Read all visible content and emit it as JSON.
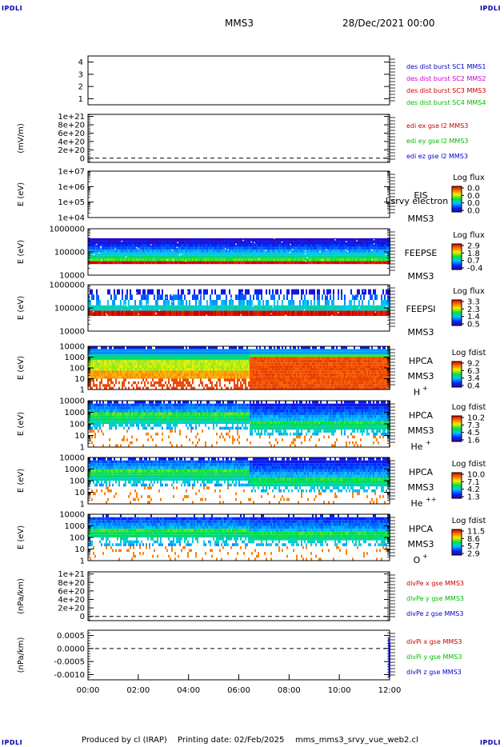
{
  "header": {
    "corner_label": "IPDLI",
    "spacecraft": "MMS3",
    "date": "28/Dec/2021 00:00"
  },
  "footer": {
    "produced_by": "Produced by cl (IRAP)",
    "printing_date": "Printing date: 02/Feb/2025",
    "filename": "mms_mms3_srvy_vue_web2.cl"
  },
  "colors": {
    "mms1": "#0000cc",
    "mms2": "#cc00cc",
    "mms3": "#cc0000",
    "mms4": "#00bb00",
    "component_x": "#cc0000",
    "component_y": "#00bb00",
    "component_z": "#0000cc"
  },
  "chart_data": [
    {
      "type": "line",
      "panel": "spacecraft-selection",
      "ylabel": "",
      "ylim": [
        0.5,
        4.5
      ],
      "yticks": [
        "1",
        "2",
        "3",
        "4"
      ],
      "legend": [
        {
          "text": "des dist burst SC1 MMS1",
          "color": "#0000cc"
        },
        {
          "text": "des dist burst SC2 MMS2",
          "color": "#cc00cc"
        },
        {
          "text": "des dist burst SC3 MMS3",
          "color": "#cc0000"
        },
        {
          "text": "des dist burst SC4 MMS4",
          "color": "#00bb00"
        }
      ],
      "series": []
    },
    {
      "type": "line",
      "panel": "edi-electric-field",
      "ylabel": "(mV/m)",
      "ylim": [
        -1e+20,
        1.05e+21
      ],
      "yticks": [
        "0",
        "2e+20",
        "4e+20",
        "6e+20",
        "8e+20",
        "1e+21"
      ],
      "ytick_values": [
        0,
        2e+20,
        4e+20,
        6e+20,
        8e+20,
        1e+21
      ],
      "zero_line": true,
      "legend": [
        {
          "text": "edi ex gse l2 MMS3",
          "color": "#cc0000"
        },
        {
          "text": "edi ey gse l2 MMS3",
          "color": "#00bb00"
        },
        {
          "text": "edi ez gse l2 MMS3",
          "color": "#0000cc"
        }
      ]
    },
    {
      "type": "heatmap",
      "panel": "eis",
      "ylabel": "E (eV)",
      "yscale": "log",
      "ylim": [
        10000,
        10000000
      ],
      "yticks": [
        "1e+04",
        "1e+05",
        "1e+06",
        "1e+07"
      ],
      "label": "EIS",
      "sublabel": "MMS3",
      "overlay_text": "l srvy electron to",
      "colorbar": {
        "title": "Log flux",
        "ticks": [
          "0.0",
          "0.0",
          "0.0",
          "0.0"
        ]
      }
    },
    {
      "type": "heatmap",
      "panel": "feeps-electrons",
      "ylabel": "E (eV)",
      "yscale": "log",
      "ylim": [
        10000,
        1000000
      ],
      "yticks": [
        "10000",
        "100000",
        "1000000"
      ],
      "label": "FEEPSE",
      "sublabel": "MMS3",
      "colorbar": {
        "title": "Log flux",
        "ticks": [
          "2.9",
          "1.8",
          "0.7",
          "-0.4"
        ]
      }
    },
    {
      "type": "heatmap",
      "panel": "feeps-ions",
      "ylabel": "E (eV)",
      "yscale": "log",
      "ylim": [
        10000,
        1000000
      ],
      "yticks": [
        "10000",
        "100000",
        "1000000"
      ],
      "label": "FEEPSI",
      "sublabel": "MMS3",
      "colorbar": {
        "title": "Log flux",
        "ticks": [
          "3.3",
          "2.3",
          "1.4",
          "0.5"
        ]
      }
    },
    {
      "type": "heatmap",
      "panel": "hpca-h",
      "ylabel": "E (eV)",
      "yscale": "log",
      "ylim": [
        1,
        10000
      ],
      "yticks": [
        "1",
        "10",
        "100",
        "1000",
        "10000"
      ],
      "label": "HPCA",
      "sublabel": "MMS3",
      "species": "H",
      "species_charge": "+",
      "colorbar": {
        "title": "Log fdist",
        "ticks": [
          "9.2",
          "6.3",
          "3.4",
          "0.4"
        ]
      }
    },
    {
      "type": "heatmap",
      "panel": "hpca-he",
      "ylabel": "E (eV)",
      "yscale": "log",
      "ylim": [
        1,
        10000
      ],
      "yticks": [
        "1",
        "10",
        "100",
        "1000",
        "10000"
      ],
      "label": "HPCA",
      "sublabel": "MMS3",
      "species": "He",
      "species_charge": "+",
      "colorbar": {
        "title": "Log fdist",
        "ticks": [
          "10.2",
          "7.3",
          "4.5",
          "1.6"
        ]
      }
    },
    {
      "type": "heatmap",
      "panel": "hpca-he2",
      "ylabel": "E (eV)",
      "yscale": "log",
      "ylim": [
        1,
        10000
      ],
      "yticks": [
        "1",
        "10",
        "100",
        "1000",
        "10000"
      ],
      "label": "HPCA",
      "sublabel": "MMS3",
      "species": "He",
      "species_charge": "++",
      "colorbar": {
        "title": "Log fdist",
        "ticks": [
          "10.0",
          "7.1",
          "4.2",
          "1.3"
        ]
      }
    },
    {
      "type": "heatmap",
      "panel": "hpca-o",
      "ylabel": "E (eV)",
      "yscale": "log",
      "ylim": [
        1,
        10000
      ],
      "yticks": [
        "1",
        "10",
        "100",
        "1000",
        "10000"
      ],
      "label": "HPCA",
      "sublabel": "MMS3",
      "species": "O",
      "species_charge": "+",
      "colorbar": {
        "title": "Log fdist",
        "ticks": [
          "11.5",
          "8.6",
          "5.7",
          "2.9"
        ]
      }
    },
    {
      "type": "line",
      "panel": "divpe",
      "ylabel": "(nPa/km)",
      "ylim": [
        -1e+20,
        1.05e+21
      ],
      "yticks": [
        "0",
        "2e+20",
        "4e+20",
        "6e+20",
        "8e+20",
        "1e+21"
      ],
      "ytick_values": [
        0,
        2e+20,
        4e+20,
        6e+20,
        8e+20,
        1e+21
      ],
      "zero_line": true,
      "legend": [
        {
          "text": "divPe x gse MMS3",
          "color": "#cc0000"
        },
        {
          "text": "divPe y gse MMS3",
          "color": "#00bb00"
        },
        {
          "text": "divPe z gse MMS3",
          "color": "#0000cc"
        }
      ]
    },
    {
      "type": "line",
      "panel": "divpi",
      "ylabel": "(nPa/km)",
      "ylim": [
        -0.0012,
        0.0007
      ],
      "yticks": [
        "-0.0010",
        "-0.0005",
        "0.0000",
        "0.0005"
      ],
      "ytick_values": [
        -0.001,
        -0.0005,
        0,
        0.0005
      ],
      "zero_line": true,
      "legend": [
        {
          "text": "divPi x gse MMS3",
          "color": "#cc0000"
        },
        {
          "text": "divPi y gse MMS3",
          "color": "#00bb00"
        },
        {
          "text": "divPi z gse MMS3",
          "color": "#0000cc"
        }
      ],
      "series": [
        {
          "name": "divPi z gse MMS3",
          "x": [
            11.98,
            11.99,
            12.0
          ],
          "values": [
            0.0004,
            -0.0011,
            0.0002
          ]
        }
      ]
    }
  ],
  "xaxis": {
    "range_hours": [
      0,
      12
    ],
    "ticks": [
      "00:00",
      "02:00",
      "04:00",
      "06:00",
      "08:00",
      "10:00",
      "12:00"
    ]
  }
}
